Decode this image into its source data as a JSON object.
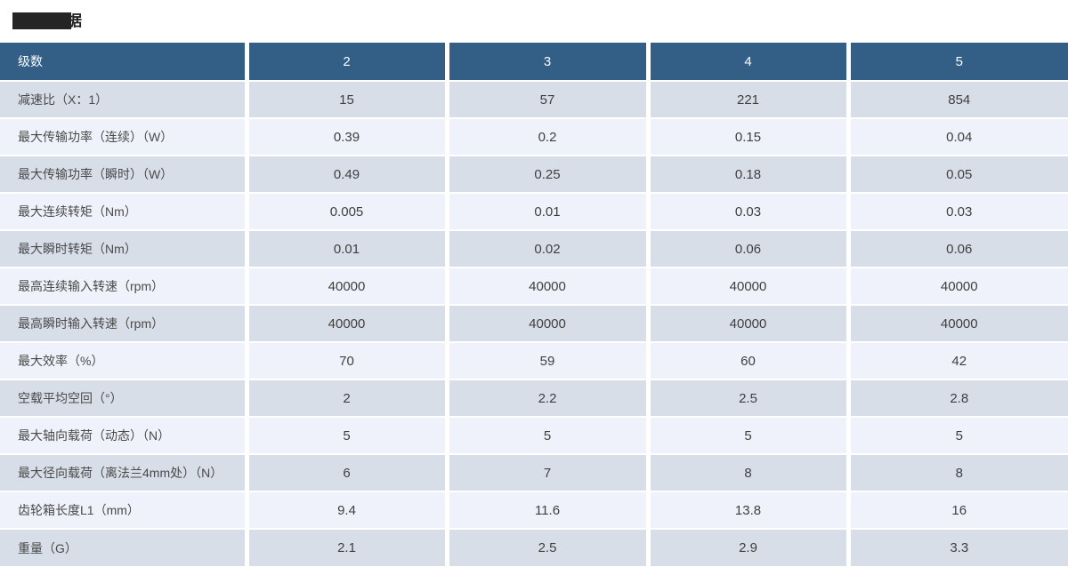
{
  "title": {
    "visible_text": "据",
    "note": "title-partially-covered-by-black-redaction-box"
  },
  "colors": {
    "header_bg": "#335f87",
    "header_text": "#fbfdfe",
    "row_odd_bg": "#d8dee8",
    "row_even_bg": "#eff2fa",
    "separator": "#ffffff",
    "redaction_box": "#242424"
  },
  "table": {
    "header": {
      "row_label": "级数",
      "columns": [
        "2",
        "3",
        "4",
        "5"
      ]
    },
    "rows": [
      {
        "label": "减速比（X：1）",
        "values": [
          "15",
          "57",
          "221",
          "854"
        ]
      },
      {
        "label": "最大传输功率（连续）（W）",
        "values": [
          "0.39",
          "0.2",
          "0.15",
          "0.04"
        ]
      },
      {
        "label": "最大传输功率（瞬时）（W）",
        "values": [
          "0.49",
          "0.25",
          "0.18",
          "0.05"
        ]
      },
      {
        "label": "最大连续转矩（Nm）",
        "values": [
          "0.005",
          "0.01",
          "0.03",
          "0.03"
        ]
      },
      {
        "label": "最大瞬时转矩（Nm）",
        "values": [
          "0.01",
          "0.02",
          "0.06",
          "0.06"
        ]
      },
      {
        "label": "最高连续输入转速（rpm）",
        "values": [
          "40000",
          "40000",
          "40000",
          "40000"
        ]
      },
      {
        "label": "最高瞬时输入转速（rpm）",
        "values": [
          "40000",
          "40000",
          "40000",
          "40000"
        ]
      },
      {
        "label": "最大效率（%）",
        "values": [
          "70",
          "59",
          "60",
          "42"
        ]
      },
      {
        "label": "空载平均空回（°）",
        "values": [
          "2",
          "2.2",
          "2.5",
          "2.8"
        ]
      },
      {
        "label": "最大轴向载荷（动态）（N）",
        "values": [
          "5",
          "5",
          "5",
          "5"
        ]
      },
      {
        "label": "最大径向载荷（离法兰4mm处）（N）",
        "values": [
          "6",
          "7",
          "8",
          "8"
        ]
      },
      {
        "label": "齿轮箱长度L1（mm）",
        "values": [
          "9.4",
          "11.6",
          "13.8",
          "16"
        ]
      },
      {
        "label": "重量（G）",
        "values": [
          "2.1",
          "2.5",
          "2.9",
          "3.3"
        ]
      }
    ]
  }
}
